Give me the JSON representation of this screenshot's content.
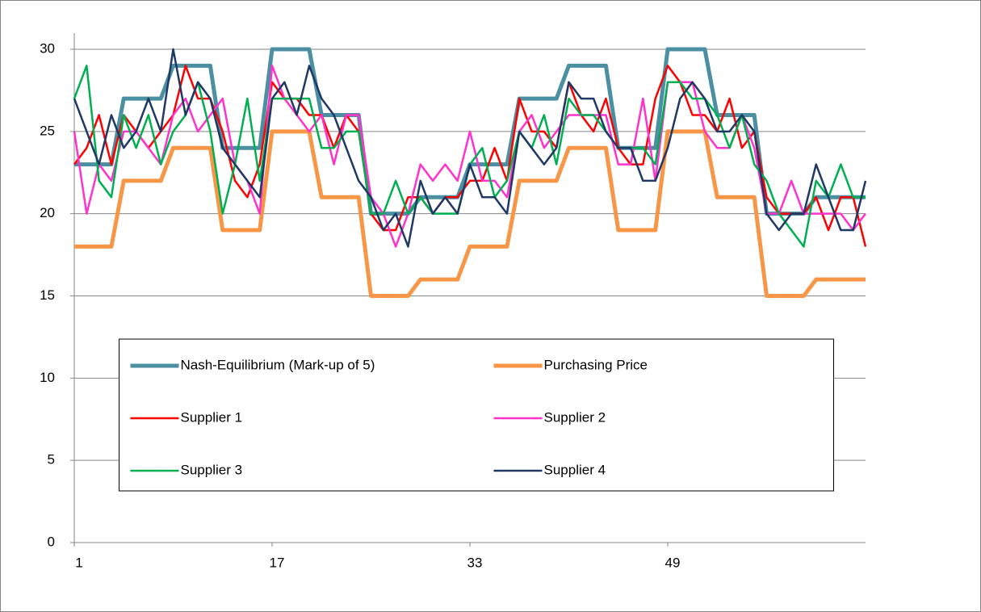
{
  "chart_data": {
    "type": "line",
    "x": [
      1,
      2,
      3,
      4,
      5,
      6,
      7,
      8,
      9,
      10,
      11,
      12,
      13,
      14,
      15,
      16,
      17,
      18,
      19,
      20,
      21,
      22,
      23,
      24,
      25,
      26,
      27,
      28,
      29,
      30,
      31,
      32,
      33,
      34,
      35,
      36,
      37,
      38,
      39,
      40,
      41,
      42,
      43,
      44,
      45,
      46,
      47,
      48,
      49,
      50,
      51,
      52,
      53,
      54,
      55,
      56,
      57,
      58,
      59,
      60,
      61,
      62,
      63,
      64,
      65
    ],
    "xlim": [
      1,
      65
    ],
    "xticks": [
      1,
      17,
      33,
      49
    ],
    "ylim": [
      0,
      30
    ],
    "yticks": [
      0,
      5,
      10,
      15,
      20,
      25,
      30
    ],
    "grid": true,
    "legend": "center",
    "series": [
      {
        "name": "Nash-Equilibrium (Mark-up of 5)",
        "color": "#4a8fa2",
        "width": 5,
        "values": [
          23,
          23,
          23,
          23,
          27,
          27,
          27,
          27,
          29,
          29,
          29,
          29,
          24,
          24,
          24,
          24,
          30,
          30,
          30,
          30,
          26,
          26,
          26,
          26,
          20,
          20,
          20,
          20,
          21,
          21,
          21,
          21,
          23,
          23,
          23,
          23,
          27,
          27,
          27,
          27,
          29,
          29,
          29,
          29,
          24,
          24,
          24,
          24,
          30,
          30,
          30,
          30,
          26,
          26,
          26,
          26,
          20,
          20,
          20,
          20,
          21,
          21,
          21,
          21,
          21
        ]
      },
      {
        "name": "Purchasing Price",
        "color": "#f79646",
        "width": 5,
        "values": [
          18,
          18,
          18,
          18,
          22,
          22,
          22,
          22,
          24,
          24,
          24,
          24,
          19,
          19,
          19,
          19,
          25,
          25,
          25,
          25,
          21,
          21,
          21,
          21,
          15,
          15,
          15,
          15,
          16,
          16,
          16,
          16,
          18,
          18,
          18,
          18,
          22,
          22,
          22,
          22,
          24,
          24,
          24,
          24,
          19,
          19,
          19,
          19,
          25,
          25,
          25,
          25,
          21,
          21,
          21,
          21,
          15,
          15,
          15,
          15,
          16,
          16,
          16,
          16,
          16
        ]
      },
      {
        "name": "Supplier 1",
        "color": "#ff0000",
        "width": 2.5,
        "values": [
          23,
          24,
          26,
          23,
          26,
          25,
          24,
          25,
          26,
          29,
          27,
          27,
          25,
          22,
          21,
          23,
          28,
          27,
          27,
          26,
          26,
          24,
          26,
          25,
          20,
          19,
          19,
          21,
          21,
          20,
          21,
          21,
          22,
          22,
          24,
          22,
          27,
          25,
          25,
          24,
          28,
          26,
          25,
          27,
          24,
          23,
          23,
          27,
          29,
          28,
          26,
          26,
          25,
          27,
          24,
          25,
          21,
          20,
          20,
          20,
          21,
          19,
          21,
          21,
          18
        ]
      },
      {
        "name": "Supplier 2",
        "color": "#ff33cc",
        "width": 2.5,
        "values": [
          25,
          20,
          23,
          22,
          25,
          25,
          24,
          23,
          26,
          27,
          25,
          26,
          27,
          23,
          22,
          20,
          29,
          27,
          26,
          25,
          26,
          23,
          26,
          26,
          21,
          20,
          18,
          20,
          23,
          22,
          23,
          22,
          25,
          22,
          22,
          21,
          25,
          26,
          24,
          25,
          26,
          26,
          26,
          26,
          23,
          23,
          27,
          22,
          28,
          28,
          28,
          25,
          24,
          24,
          26,
          24,
          20,
          20,
          22,
          20,
          20,
          20,
          20,
          19,
          20
        ]
      },
      {
        "name": "Supplier 3",
        "color": "#00b050",
        "width": 2.5,
        "values": [
          27,
          29,
          22,
          21,
          26,
          24,
          26,
          23,
          25,
          26,
          28,
          25,
          20,
          23,
          27,
          22,
          27,
          27,
          27,
          27,
          24,
          24,
          25,
          25,
          20,
          20,
          22,
          20,
          21,
          20,
          20,
          20,
          23,
          24,
          21,
          22,
          25,
          24,
          26,
          23,
          27,
          26,
          26,
          25,
          24,
          24,
          24,
          23,
          28,
          28,
          27,
          27,
          26,
          24,
          26,
          23,
          22,
          20,
          19,
          18,
          22,
          21,
          23,
          21,
          21
        ]
      },
      {
        "name": "Supplier 4",
        "color": "#1f3864",
        "width": 2.5,
        "values": [
          27,
          25,
          23,
          26,
          24,
          25,
          27,
          25,
          30,
          26,
          28,
          27,
          24,
          23,
          22,
          21,
          27,
          28,
          26,
          29,
          27,
          26,
          24,
          22,
          21,
          19,
          20,
          18,
          22,
          20,
          21,
          20,
          23,
          21,
          21,
          20,
          25,
          24,
          23,
          24,
          28,
          27,
          27,
          25,
          24,
          24,
          22,
          22,
          24,
          27,
          28,
          27,
          25,
          25,
          26,
          25,
          20,
          19,
          20,
          20,
          23,
          21,
          19,
          19,
          22
        ]
      }
    ]
  }
}
